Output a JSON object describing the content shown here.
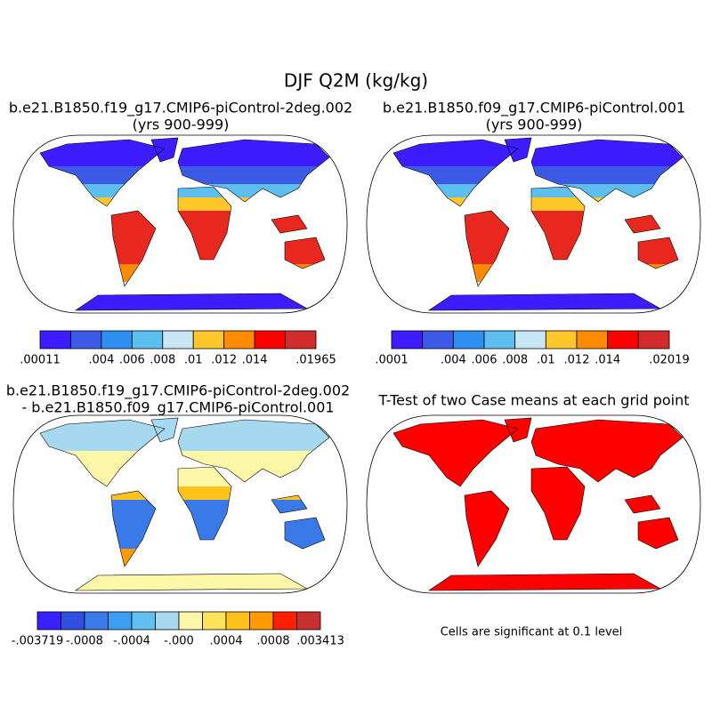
{
  "title": "DJF Q2M (kg/kg)",
  "panels": [
    {
      "title": [
        "b.e21.B1850.f19_g17.CMIP6-piControl-2deg.002",
        "(yrs 900-999)"
      ],
      "colorbar": {
        "colors": [
          "#3d1cff",
          "#3d5ae6",
          "#2f8ff0",
          "#5cbff0",
          "#c8e6f5",
          "#ffc72a",
          "#ff8c00",
          "#ff0000",
          "#d22b2b"
        ],
        "labels": [
          ".00011",
          null,
          ".004",
          ".006",
          ".008",
          ".01",
          ".012",
          ".014",
          null,
          ".01965"
        ]
      }
    },
    {
      "title": [
        "b.e21.B1850.f09_g17.CMIP6-piControl.001",
        "(yrs 900-999)"
      ],
      "colorbar": {
        "colors": [
          "#3d1cff",
          "#3d5ae6",
          "#2f8ff0",
          "#5cbff0",
          "#c8e6f5",
          "#ffc72a",
          "#ff8c00",
          "#ff0000",
          "#d22b2b"
        ],
        "labels": [
          ".0001",
          null,
          ".004",
          ".006",
          ".008",
          ".01",
          ".012",
          ".014",
          null,
          ".02019"
        ]
      }
    },
    {
      "title": [
        "b.e21.B1850.f19_g17.CMIP6-piControl-2deg.002",
        "- b.e21.B1850.f09_g17.CMIP6-piControl.001"
      ],
      "colorbar": {
        "colors": [
          "#3a1fff",
          "#2f4fe0",
          "#3a7ae8",
          "#3b9ef0",
          "#62c0f0",
          "#a6d8f0",
          "#fff7a8",
          "#ffe25a",
          "#ffc21a",
          "#ff9a00",
          "#ff2000",
          "#c83030"
        ],
        "labels": [
          "-.003719",
          null,
          "-.0008",
          null,
          "-.0004",
          null,
          "-.000",
          null,
          ".0004",
          null,
          ".0008",
          null,
          ".003413"
        ]
      }
    },
    {
      "title": [
        "T-Test of two Case means at each grid point"
      ],
      "note": "Cells are significant at 0.1 level"
    }
  ]
}
